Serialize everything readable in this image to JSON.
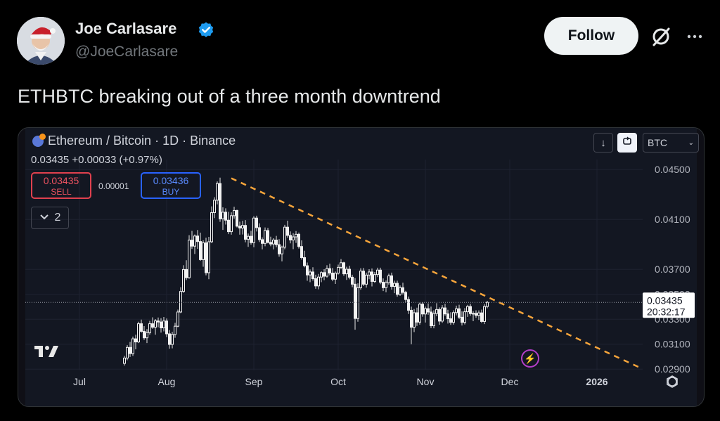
{
  "tweet": {
    "display_name": "Joe Carlasare",
    "handle": "@JoeCarlasare",
    "follow_label": "Follow",
    "text": "ETHBTC breaking out of a three month downtrend"
  },
  "chart_header": {
    "symbol": "Ethereum / Bitcoin · 1D · Binance",
    "ohlc": "0.03435 +0.00033 (+0.97%)",
    "sell_price": "0.03435",
    "sell_label": "SELL",
    "spread": "0.00001",
    "buy_price": "0.03436",
    "buy_label": "BUY",
    "indicator_count": "2",
    "currency": "BTC"
  },
  "chart_data": {
    "type": "candlestick",
    "title": "Ethereum / Bitcoin · 1D · Binance",
    "ylim": [
      0.0289,
      0.0458
    ],
    "y_ticks": [
      "0.04500",
      "0.04100",
      "0.03700",
      "0.03500",
      "0.03300",
      "0.03100",
      "0.02900"
    ],
    "x_ticks": [
      "Jul",
      "Aug",
      "Sep",
      "Oct",
      "Nov",
      "Dec",
      "2026"
    ],
    "x_tick_days": [
      0,
      31,
      62,
      92,
      123,
      153,
      184
    ],
    "last_price": "0.03435",
    "countdown": "20:32:17",
    "downtrend_line": {
      "from": [
        54,
        0.0443
      ],
      "to": [
        199,
        0.02915
      ]
    },
    "candles": [
      [
        16,
        0.02946,
        0.03006,
        0.02929,
        0.02989
      ],
      [
        17,
        0.02989,
        0.03092,
        0.02972,
        0.03074
      ],
      [
        18,
        0.03074,
        0.03118,
        0.02998,
        0.03025
      ],
      [
        19,
        0.03025,
        0.03161,
        0.03006,
        0.03143
      ],
      [
        20,
        0.03143,
        0.03176,
        0.03059,
        0.03118
      ],
      [
        21,
        0.03118,
        0.0328,
        0.03109,
        0.03264
      ],
      [
        22,
        0.03264,
        0.03297,
        0.03193,
        0.03203
      ],
      [
        23,
        0.03203,
        0.03245,
        0.03134,
        0.03151
      ],
      [
        24,
        0.03151,
        0.03221,
        0.03109,
        0.03193
      ],
      [
        25,
        0.03193,
        0.03287,
        0.03177,
        0.03264
      ],
      [
        26,
        0.03264,
        0.03315,
        0.03224,
        0.03236
      ],
      [
        27,
        0.03236,
        0.03301,
        0.03176,
        0.03287
      ],
      [
        28,
        0.03287,
        0.03314,
        0.03236,
        0.03278
      ],
      [
        29,
        0.03278,
        0.03308,
        0.03193,
        0.03231
      ],
      [
        30,
        0.03231,
        0.03318,
        0.03203,
        0.03286
      ],
      [
        31,
        0.03286,
        0.03306,
        0.03157,
        0.03183
      ],
      [
        32,
        0.03183,
        0.03213,
        0.03064,
        0.03098
      ],
      [
        33,
        0.03098,
        0.03199,
        0.03067,
        0.03178
      ],
      [
        34,
        0.03178,
        0.03272,
        0.03151,
        0.03244
      ],
      [
        35,
        0.03244,
        0.03377,
        0.03236,
        0.03358
      ],
      [
        36,
        0.03358,
        0.03557,
        0.03349,
        0.03523
      ],
      [
        37,
        0.03523,
        0.03733,
        0.03512,
        0.03699
      ],
      [
        38,
        0.03699,
        0.03773,
        0.03614,
        0.03633
      ],
      [
        39,
        0.03633,
        0.03974,
        0.03625,
        0.03934
      ],
      [
        40,
        0.03934,
        0.04008,
        0.03864,
        0.03886
      ],
      [
        41,
        0.03886,
        0.03979,
        0.03823,
        0.03967
      ],
      [
        42,
        0.03967,
        0.04015,
        0.03864,
        0.03923
      ],
      [
        43,
        0.03923,
        0.03994,
        0.03768,
        0.03778
      ],
      [
        44,
        0.03778,
        0.03933,
        0.03721,
        0.03912
      ],
      [
        45,
        0.03912,
        0.03953,
        0.03652,
        0.03673
      ],
      [
        46,
        0.03673,
        0.0396,
        0.03621,
        0.03921
      ],
      [
        47,
        0.03921,
        0.04205,
        0.0391,
        0.04155
      ],
      [
        48,
        0.04155,
        0.04278,
        0.0411,
        0.04254
      ],
      [
        49,
        0.04254,
        0.04405,
        0.04221,
        0.04388
      ],
      [
        50,
        0.04388,
        0.04435,
        0.04081,
        0.04105
      ],
      [
        51,
        0.04105,
        0.04197,
        0.04016,
        0.04158
      ],
      [
        52,
        0.04158,
        0.04189,
        0.04059,
        0.04094
      ],
      [
        53,
        0.04094,
        0.04161,
        0.03982,
        0.04002
      ],
      [
        54,
        0.04002,
        0.04157,
        0.03978,
        0.0413
      ],
      [
        55,
        0.0413,
        0.04202,
        0.04107,
        0.04172
      ],
      [
        56,
        0.04172,
        0.04178,
        0.04036,
        0.04046
      ],
      [
        57,
        0.04046,
        0.04082,
        0.03978,
        0.04031
      ],
      [
        58,
        0.04031,
        0.04089,
        0.03979,
        0.04052
      ],
      [
        59,
        0.04052,
        0.04095,
        0.03917,
        0.03941
      ],
      [
        60,
        0.03941,
        0.03987,
        0.0388,
        0.03965
      ],
      [
        61,
        0.03965,
        0.04009,
        0.03898,
        0.03914
      ],
      [
        62,
        0.03914,
        0.04126,
        0.03877,
        0.04111
      ],
      [
        63,
        0.04111,
        0.0413,
        0.04003,
        0.04034
      ],
      [
        64,
        0.04034,
        0.04069,
        0.03919,
        0.03938
      ],
      [
        65,
        0.03938,
        0.03956,
        0.0386,
        0.03908
      ],
      [
        66,
        0.03908,
        0.04036,
        0.03885,
        0.04011
      ],
      [
        67,
        0.04011,
        0.04032,
        0.03908,
        0.03916
      ],
      [
        68,
        0.03916,
        0.03962,
        0.03885,
        0.03903
      ],
      [
        69,
        0.03903,
        0.03949,
        0.0386,
        0.03935
      ],
      [
        70,
        0.03935,
        0.03968,
        0.03877,
        0.03898
      ],
      [
        71,
        0.03898,
        0.03942,
        0.03801,
        0.03824
      ],
      [
        72,
        0.03824,
        0.03889,
        0.03764,
        0.03878
      ],
      [
        73,
        0.03878,
        0.04057,
        0.03861,
        0.04038
      ],
      [
        74,
        0.04038,
        0.0409,
        0.03953,
        0.03972
      ],
      [
        75,
        0.03972,
        0.04004,
        0.03908,
        0.03935
      ],
      [
        76,
        0.03935,
        0.0399,
        0.03862,
        0.0396
      ],
      [
        77,
        0.0396,
        0.04007,
        0.03912,
        0.03981
      ],
      [
        78,
        0.03981,
        0.03995,
        0.03867,
        0.03883
      ],
      [
        79,
        0.03883,
        0.03932,
        0.03778,
        0.03794
      ],
      [
        80,
        0.03794,
        0.03849,
        0.03716,
        0.03729
      ],
      [
        81,
        0.03729,
        0.03755,
        0.03608,
        0.03655
      ],
      [
        82,
        0.03655,
        0.03699,
        0.03597,
        0.03679
      ],
      [
        83,
        0.03679,
        0.03717,
        0.03609,
        0.03625
      ],
      [
        84,
        0.03625,
        0.03657,
        0.03544,
        0.03567
      ],
      [
        85,
        0.03567,
        0.03663,
        0.0354,
        0.03638
      ],
      [
        86,
        0.03638,
        0.03685,
        0.03597,
        0.03674
      ],
      [
        87,
        0.03674,
        0.03701,
        0.03613,
        0.03645
      ],
      [
        88,
        0.03645,
        0.03733,
        0.03633,
        0.03706
      ],
      [
        89,
        0.03706,
        0.03745,
        0.03652,
        0.0367
      ],
      [
        90,
        0.0367,
        0.03711,
        0.03605,
        0.03621
      ],
      [
        91,
        0.03621,
        0.03683,
        0.03583,
        0.03669
      ],
      [
        92,
        0.03669,
        0.03738,
        0.03658,
        0.03716
      ],
      [
        93,
        0.03716,
        0.03782,
        0.03701,
        0.03753
      ],
      [
        94,
        0.03753,
        0.0376,
        0.03648,
        0.03664
      ],
      [
        95,
        0.03664,
        0.03721,
        0.03615,
        0.03701
      ],
      [
        96,
        0.03701,
        0.03729,
        0.0362,
        0.03637
      ],
      [
        97,
        0.03637,
        0.03657,
        0.03557,
        0.03581
      ],
      [
        98,
        0.03581,
        0.0363,
        0.03216,
        0.03306
      ],
      [
        99,
        0.03306,
        0.03588,
        0.0328,
        0.03553
      ],
      [
        100,
        0.03553,
        0.03709,
        0.03537,
        0.03686
      ],
      [
        101,
        0.03686,
        0.03711,
        0.03566,
        0.03581
      ],
      [
        102,
        0.03581,
        0.03674,
        0.03553,
        0.03654
      ],
      [
        103,
        0.03654,
        0.03701,
        0.03621,
        0.03679
      ],
      [
        104,
        0.03679,
        0.03707,
        0.03563,
        0.03603
      ],
      [
        105,
        0.03603,
        0.03679,
        0.0359,
        0.03658
      ],
      [
        106,
        0.03658,
        0.03713,
        0.03638,
        0.03694
      ],
      [
        107,
        0.03694,
        0.03713,
        0.03581,
        0.03597
      ],
      [
        108,
        0.03597,
        0.03627,
        0.03526,
        0.03553
      ],
      [
        109,
        0.03553,
        0.03611,
        0.03516,
        0.03593
      ],
      [
        110,
        0.03593,
        0.03665,
        0.03577,
        0.03648
      ],
      [
        111,
        0.03648,
        0.03674,
        0.03538,
        0.03563
      ],
      [
        112,
        0.03563,
        0.03609,
        0.03509,
        0.03588
      ],
      [
        113,
        0.03588,
        0.03609,
        0.03481,
        0.03499
      ],
      [
        114,
        0.03499,
        0.03571,
        0.03488,
        0.03553
      ],
      [
        115,
        0.03553,
        0.03593,
        0.03498,
        0.03515
      ],
      [
        116,
        0.03515,
        0.03528,
        0.03435,
        0.03458
      ],
      [
        117,
        0.03458,
        0.03482,
        0.03342,
        0.03372
      ],
      [
        118,
        0.03372,
        0.03401,
        0.031,
        0.03236
      ],
      [
        119,
        0.03236,
        0.03382,
        0.03197,
        0.03352
      ],
      [
        120,
        0.03352,
        0.03393,
        0.03246,
        0.03277
      ],
      [
        121,
        0.03277,
        0.03433,
        0.03257,
        0.03421
      ],
      [
        122,
        0.03421,
        0.03436,
        0.0332,
        0.03342
      ],
      [
        123,
        0.03342,
        0.03401,
        0.03274,
        0.03385
      ],
      [
        124,
        0.03385,
        0.03427,
        0.03336,
        0.03358
      ],
      [
        125,
        0.03358,
        0.03401,
        0.03229,
        0.03248
      ],
      [
        126,
        0.03248,
        0.03372,
        0.03227,
        0.03346
      ],
      [
        127,
        0.03346,
        0.03429,
        0.03324,
        0.03378
      ],
      [
        128,
        0.03378,
        0.03395,
        0.03256,
        0.03285
      ],
      [
        129,
        0.03285,
        0.03413,
        0.03271,
        0.03391
      ],
      [
        130,
        0.03391,
        0.03424,
        0.03329,
        0.03343
      ],
      [
        131,
        0.03343,
        0.03376,
        0.03265,
        0.03304
      ],
      [
        132,
        0.03304,
        0.03356,
        0.03255,
        0.03275
      ],
      [
        133,
        0.03275,
        0.03372,
        0.03257,
        0.03353
      ],
      [
        134,
        0.03353,
        0.03409,
        0.03331,
        0.03384
      ],
      [
        135,
        0.03384,
        0.03416,
        0.03301,
        0.03316
      ],
      [
        136,
        0.03316,
        0.03363,
        0.0325,
        0.03275
      ],
      [
        137,
        0.03275,
        0.03389,
        0.03258,
        0.0336
      ],
      [
        138,
        0.0336,
        0.03415,
        0.03319,
        0.03402
      ],
      [
        139,
        0.03402,
        0.03424,
        0.03327,
        0.03345
      ],
      [
        140,
        0.03345,
        0.03365,
        0.03284,
        0.03347
      ],
      [
        141,
        0.03347,
        0.03372,
        0.03311,
        0.03331
      ],
      [
        142,
        0.03331,
        0.03371,
        0.03294,
        0.03351
      ],
      [
        143,
        0.03351,
        0.03377,
        0.0327,
        0.03282
      ],
      [
        144,
        0.03282,
        0.03421,
        0.03261,
        0.03402
      ],
      [
        145,
        0.03402,
        0.03448,
        0.03388,
        0.03435
      ]
    ]
  }
}
